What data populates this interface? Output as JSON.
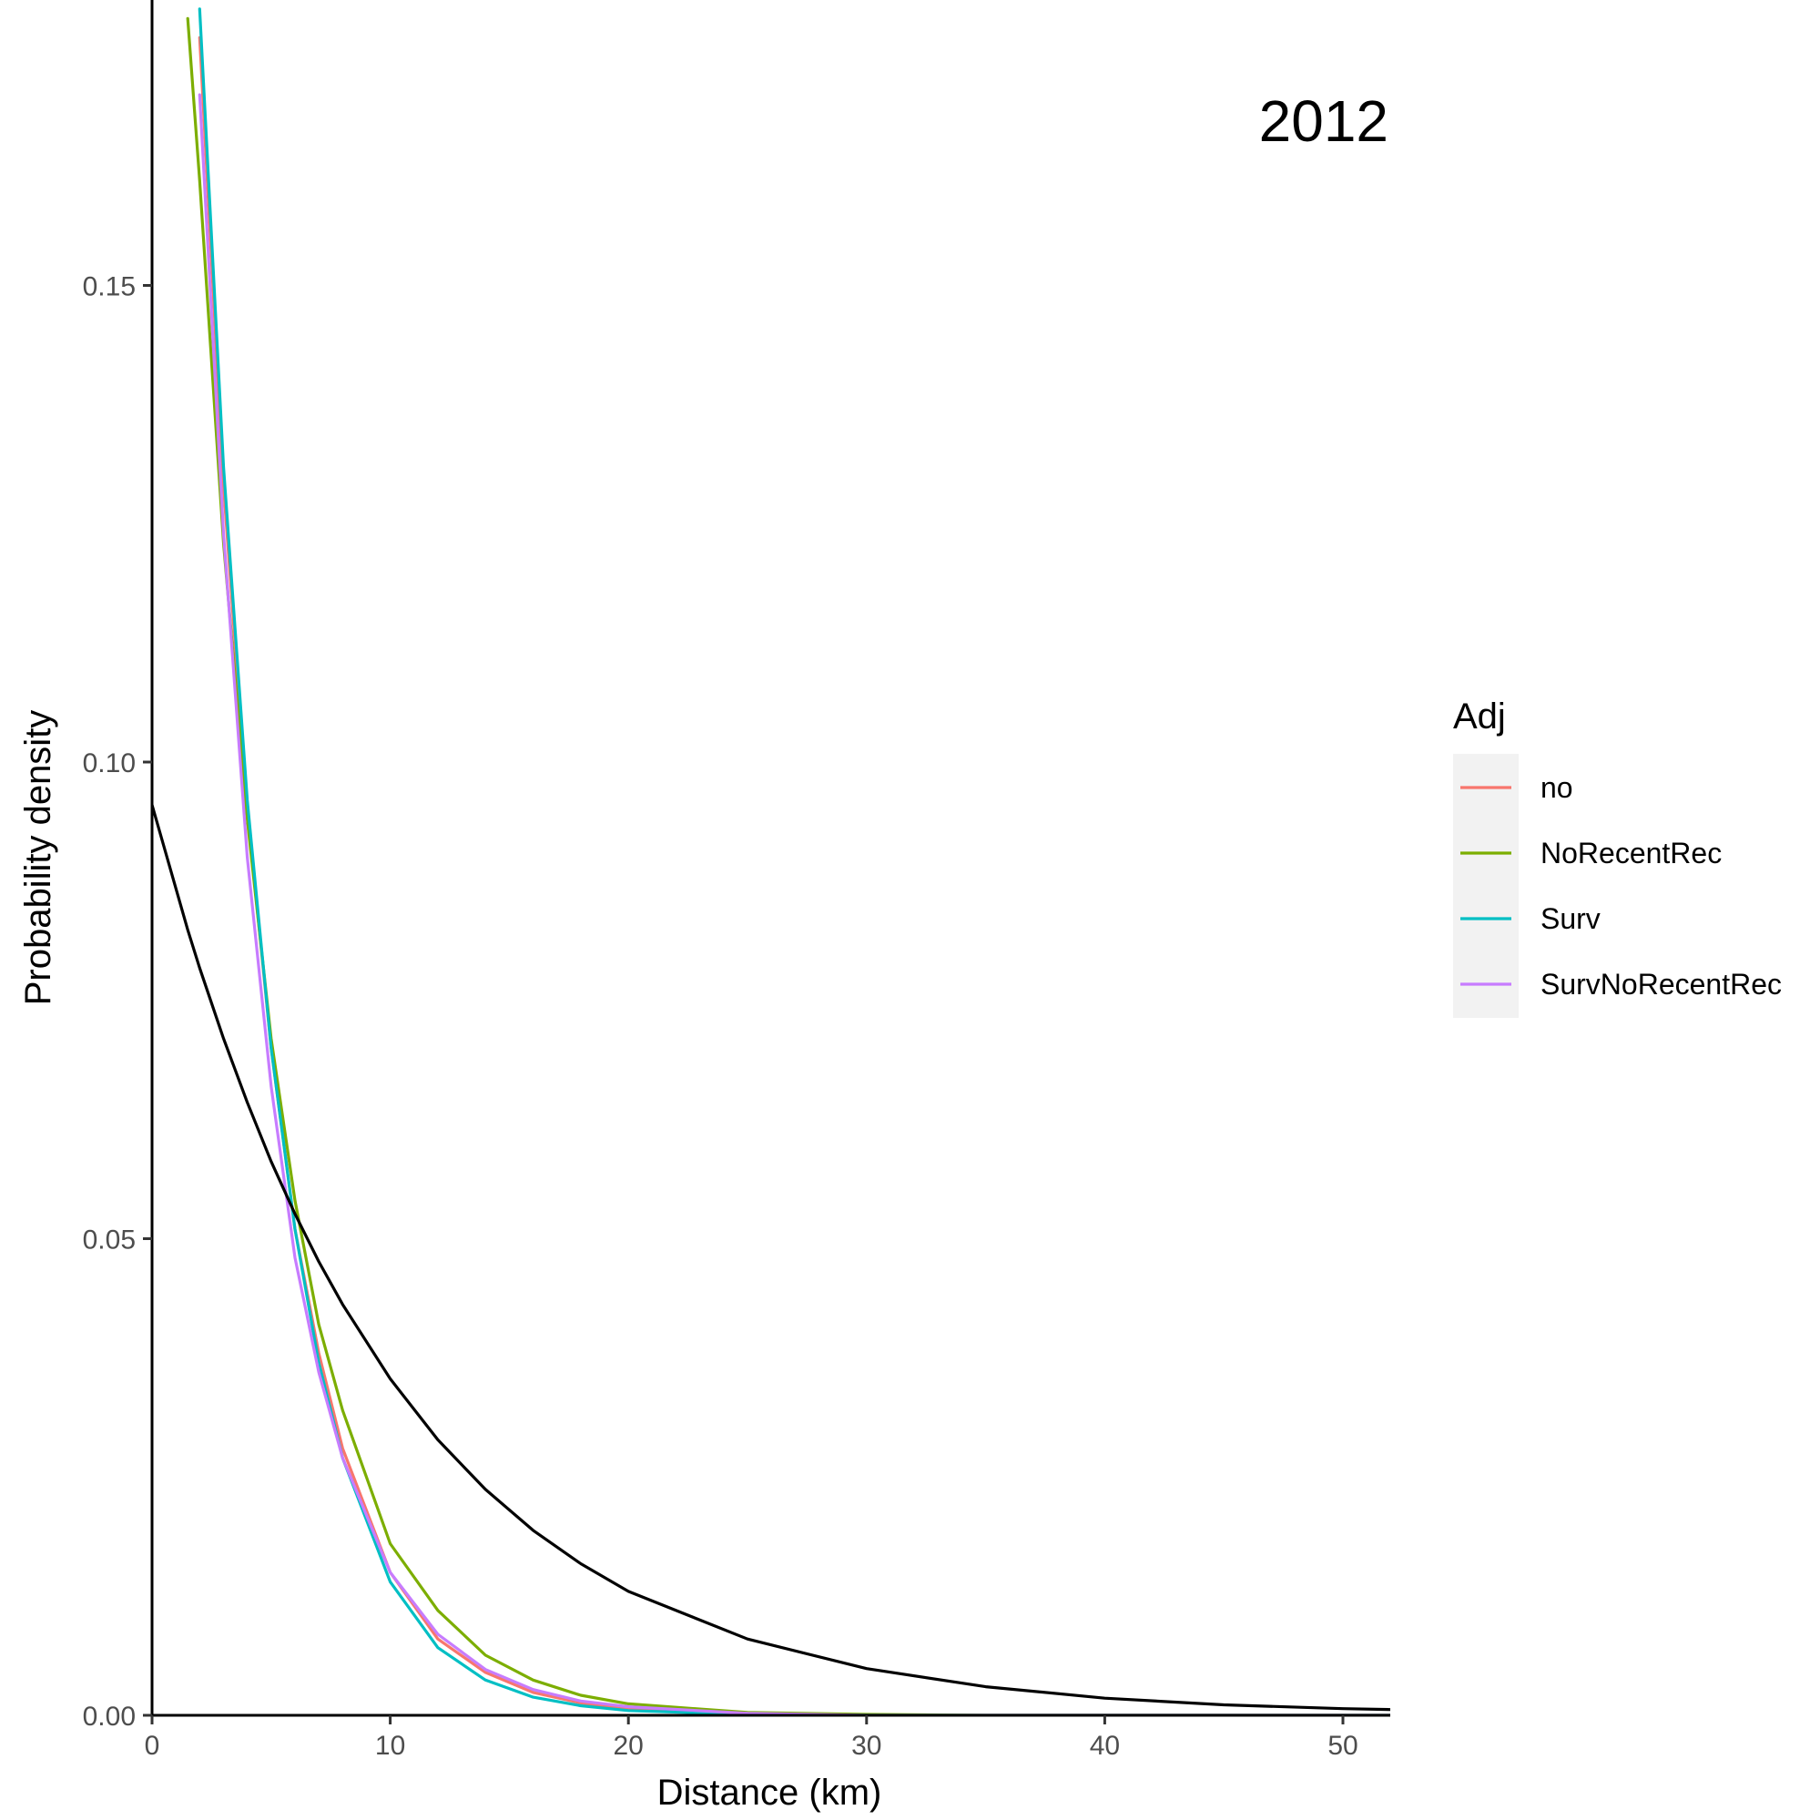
{
  "chart_data": {
    "type": "line",
    "annotation": "2012",
    "xlabel": "Distance (km)",
    "ylabel": "Probability density",
    "xlim": [
      0,
      52
    ],
    "ylim": [
      0,
      0.18
    ],
    "x_ticks": [
      0,
      10,
      20,
      30,
      40,
      50
    ],
    "x_tick_labels": [
      "0",
      "10",
      "20",
      "30",
      "40",
      "50"
    ],
    "y_ticks": [
      0.0,
      0.05,
      0.1,
      0.15
    ],
    "y_tick_labels": [
      "0.00",
      "0.05",
      "0.10",
      "0.15"
    ],
    "grid": false,
    "legend": {
      "title": "Adj",
      "placement": "right",
      "entries": [
        {
          "label": "no",
          "color": "#F8766D"
        },
        {
          "label": "NoRecentRec",
          "color": "#7CAE00"
        },
        {
          "label": "Surv",
          "color": "#00BFC4"
        },
        {
          "label": "SurvNoRecentRec",
          "color": "#C77CFF"
        }
      ]
    },
    "x": [
      0,
      1.5,
      2,
      3,
      4,
      5,
      6,
      7,
      8,
      10,
      12,
      14,
      16,
      18,
      20,
      25,
      30,
      35,
      40,
      45,
      50,
      52
    ],
    "series": [
      {
        "name": "no",
        "color": "#F8766D",
        "values": [
          null,
          null,
          0.176,
          0.129,
          0.095,
          0.07,
          0.051,
          0.038,
          0.028,
          0.015,
          0.008,
          0.0045,
          0.0024,
          0.0013,
          0.0007,
          0.0002,
          0.0,
          0.0,
          0.0,
          0.0,
          0.0,
          0.0
        ]
      },
      {
        "name": "NoRecentRec",
        "color": "#7CAE00",
        "values": [
          null,
          0.178,
          0.161,
          0.123,
          0.094,
          0.071,
          0.054,
          0.041,
          0.032,
          0.018,
          0.011,
          0.0063,
          0.0037,
          0.0021,
          0.0012,
          0.0003,
          0.0001,
          0.0,
          0.0,
          0.0,
          0.0,
          0.0
        ]
      },
      {
        "name": "Surv",
        "color": "#00BFC4",
        "values": [
          null,
          null,
          0.179,
          0.131,
          0.096,
          0.07,
          0.051,
          0.037,
          0.027,
          0.014,
          0.0071,
          0.0037,
          0.0019,
          0.001,
          0.0005,
          0.0001,
          0.0,
          0.0,
          0.0,
          0.0,
          0.0,
          0.0
        ]
      },
      {
        "name": "SurvNoRecentRec",
        "color": "#C77CFF",
        "values": [
          null,
          null,
          0.17,
          0.124,
          0.09,
          0.066,
          0.048,
          0.036,
          0.027,
          0.015,
          0.0085,
          0.0048,
          0.0027,
          0.0015,
          0.0009,
          0.0002,
          0.0,
          0.0,
          0.0,
          0.0,
          0.0,
          0.0
        ]
      },
      {
        "color": "#000000",
        "values": [
          0.0955,
          0.0824,
          0.0784,
          0.071,
          0.0643,
          0.0581,
          0.0526,
          0.0476,
          0.0431,
          0.0353,
          0.0289,
          0.0237,
          0.0194,
          0.0159,
          0.013,
          0.008,
          0.0049,
          0.003,
          0.0018,
          0.0011,
          0.0007,
          0.0006
        ]
      }
    ]
  }
}
